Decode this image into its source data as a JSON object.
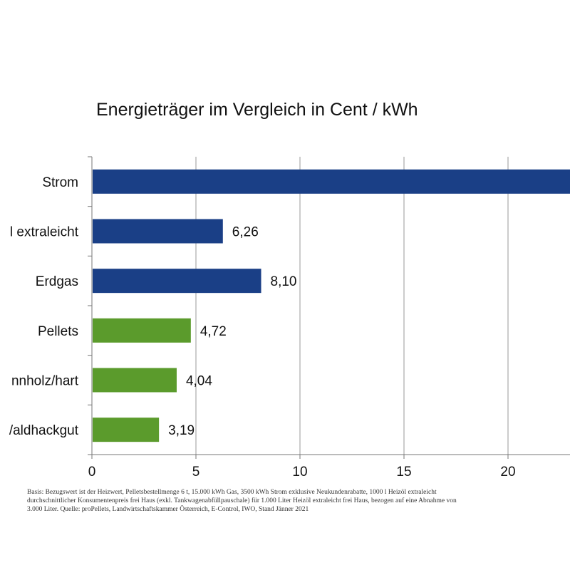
{
  "chart_data": {
    "type": "bar",
    "orientation": "horizontal",
    "title": "Energieträger im Vergleich in Cent / kWh",
    "categories": [
      "Strom",
      "l extraleicht",
      "Erdgas",
      "Pellets",
      "nnholz/hart",
      "/aldhackgut"
    ],
    "values": [
      23.0,
      6.26,
      8.1,
      4.72,
      4.04,
      3.19
    ],
    "data_labels": [
      "",
      "6,26",
      "8,10",
      "4,72",
      "4,04",
      "3,19"
    ],
    "bar_colors": [
      "#1a3f86",
      "#1a3f86",
      "#1a3f86",
      "#5b9b2c",
      "#5b9b2c",
      "#5b9b2c"
    ],
    "x_ticks": [
      0,
      5,
      10,
      15,
      20
    ],
    "xlim": [
      0,
      23
    ],
    "grid": true,
    "xlabel": "",
    "ylabel": ""
  },
  "note_lines": [
    "Basis: Bezugswert ist der Heizwert, Pelletsbestellmenge 6 t, 15.000 kWh Gas, 3500 kWh Strom exklusive Neukundenrabatte, 1000 l Heizöl extraleicht",
    "durchschnittlicher Konsumentenpreis frei Haus (exkl. Tankwagenabfüllpauschale) für 1.000 Liter Heizöl extraleicht frei Haus, bezogen auf eine Abnahme von",
    "3.000 Liter. Quelle: proPellets, Landwirtschaftskammer Österreich, E-Control, IWO, Stand Jänner 2021"
  ]
}
